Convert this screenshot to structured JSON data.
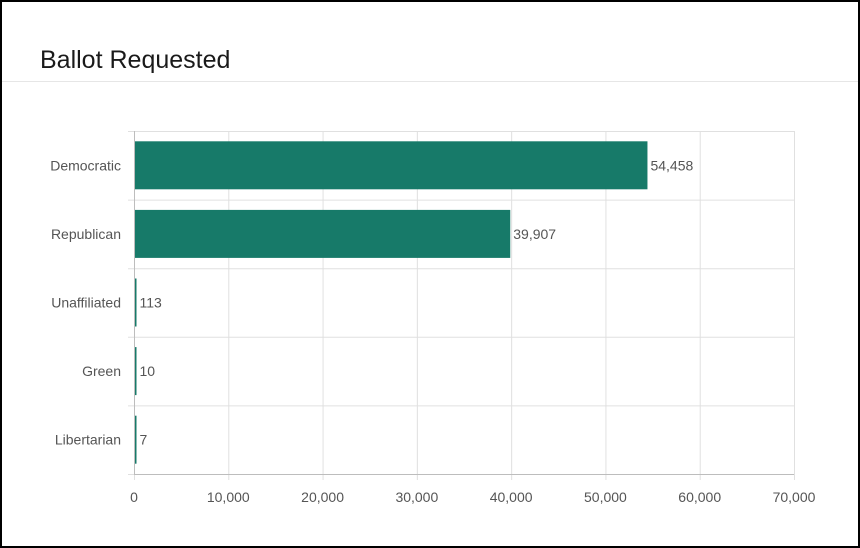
{
  "title": "Ballot Requested",
  "chart_data": {
    "type": "bar",
    "orientation": "horizontal",
    "categories": [
      "Democratic",
      "Republican",
      "Unaffiliated",
      "Green",
      "Libertarian"
    ],
    "values": [
      54458,
      39907,
      113,
      10,
      7
    ],
    "value_labels": [
      "54,458",
      "39,907",
      "113",
      "10",
      "7"
    ],
    "xlim": [
      0,
      70000
    ],
    "xticks": [
      0,
      10000,
      20000,
      30000,
      40000,
      50000,
      60000,
      70000
    ],
    "xtick_labels": [
      "0",
      "10,000",
      "20,000",
      "30,000",
      "40,000",
      "50,000",
      "60,000",
      "70,000"
    ],
    "grid": true,
    "legend": "none",
    "bar_color": "#177a69",
    "grid_color": "#e0e0e0",
    "text_color": "#555555"
  }
}
